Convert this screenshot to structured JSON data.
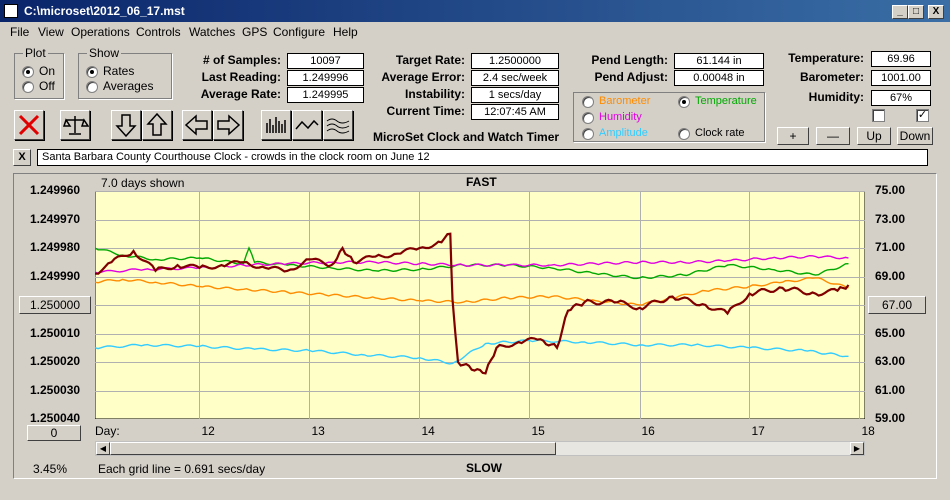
{
  "window": {
    "title": "C:\\microset\\2012_06_17.mst",
    "min": "_",
    "max": "□",
    "close": "X"
  },
  "menu": [
    "File",
    "View",
    "Operations",
    "Controls",
    "Watches",
    "GPS",
    "Configure",
    "Help"
  ],
  "plot_group": {
    "title": "Plot",
    "on": "On",
    "off": "Off",
    "selected": "On"
  },
  "show_group": {
    "title": "Show",
    "rates": "Rates",
    "averages": "Averages",
    "selected": "Rates"
  },
  "stats": {
    "samples_label": "# of Samples:",
    "samples": "10097",
    "last_label": "Last Reading:",
    "last": "1.249996",
    "avg_label": "Average Rate:",
    "avg": "1.249995",
    "target_label": "Target Rate:",
    "target": "1.2500000",
    "error_label": "Average Error:",
    "error": "2.4 sec/week",
    "instab_label": "Instability:",
    "instab": "1 secs/day",
    "time_label": "Current Time:",
    "time": "12:07:45 AM",
    "pend_len_label": "Pend Length:",
    "pend_len": "61.144 in",
    "pend_adj_label": "Pend Adjust:",
    "pend_adj": "0.00048 in",
    "temp_label": "Temperature:",
    "temp": "69.96",
    "baro_label": "Barometer:",
    "baro": "1001.00",
    "hum_label": "Humidity:",
    "hum": "67%"
  },
  "sensor_select": {
    "barometer": "Barometer",
    "temperature": "Temperature",
    "humidity": "Humidity",
    "amplitude": "Amplitude",
    "clock_rate": "Clock rate",
    "selected": "Temperature"
  },
  "app_label": "MicroSet Clock and Watch Timer",
  "adjust_buttons": {
    "plus": "+",
    "minus": "—",
    "up": "Up",
    "down": "Down"
  },
  "checkboxes": {
    "left": false,
    "right": true
  },
  "toolbar": {
    "close_x": "X"
  },
  "description": "Santa Barbara County Courthouse Clock - crowds in the clock room on June 12",
  "colors": {
    "plot_bg": "#ffffc8",
    "rate": "#800000",
    "temperature": "#00a800",
    "humidity": "#e000e0",
    "barometer": "#ff8c00",
    "amplitude": "#33ccff"
  },
  "chart": {
    "days_shown": "7.0 days shown",
    "fast": "FAST",
    "slow": "SLOW",
    "day_label": "Day:",
    "grid_note": "Each grid line = 0.691 secs/day",
    "percent": "3.45%",
    "left_center_btn": "1.250000",
    "right_center_btn": "67.00",
    "bottom_left_btn": "0"
  },
  "chart_data": {
    "type": "line",
    "x_label": "Day:",
    "x_ticks": [
      "12",
      "13",
      "14",
      "15",
      "16",
      "17",
      "18"
    ],
    "y_left_ticks": [
      "1.249960",
      "1.249970",
      "1.249980",
      "1.249990",
      "1.250000",
      "1.250010",
      "1.250020",
      "1.250030",
      "1.250040"
    ],
    "y_right_ticks": [
      "75.00",
      "73.00",
      "71.00",
      "69.00",
      "67.00",
      "65.00",
      "63.00",
      "61.00",
      "59.00"
    ],
    "xlim": [
      11.05,
      18.05
    ],
    "y_left_lim": [
      1.24996,
      1.25004
    ],
    "y_right_lim": [
      59,
      75
    ],
    "series": [
      {
        "name": "Temperature",
        "color": "#00a800",
        "axis": "right",
        "x": [
          11.05,
          11.3,
          11.6,
          12.0,
          12.4,
          12.45,
          12.5,
          12.8,
          13.2,
          13.6,
          14.0,
          14.4,
          14.8,
          15.2,
          15.6,
          16.0,
          16.4,
          16.8,
          17.2,
          17.6,
          17.9
        ],
        "y": [
          71.0,
          70.5,
          70.2,
          70.3,
          69.9,
          71.0,
          70.0,
          69.8,
          69.6,
          69.4,
          69.5,
          69.8,
          69.8,
          69.6,
          69.2,
          68.9,
          69.1,
          69.8,
          69.5,
          69.1,
          69.9
        ]
      },
      {
        "name": "Humidity",
        "color": "#e000e0",
        "axis": "right",
        "x": [
          11.05,
          11.5,
          12.0,
          12.4,
          12.8,
          13.2,
          13.6,
          14.0,
          14.4,
          14.8,
          15.2,
          15.6,
          16.0,
          16.4,
          16.8,
          17.2,
          17.6,
          17.9
        ],
        "y": [
          69.3,
          69.5,
          69.6,
          69.8,
          69.9,
          70.0,
          70.0,
          69.9,
          69.8,
          69.8,
          69.8,
          69.9,
          70.0,
          70.0,
          70.1,
          70.3,
          70.4,
          70.3
        ]
      },
      {
        "name": "Barometer",
        "color": "#ff8c00",
        "axis": "right",
        "x": [
          11.05,
          11.3,
          11.6,
          12.0,
          12.4,
          12.8,
          13.2,
          13.6,
          14.0,
          14.4,
          14.8,
          15.2,
          15.6,
          16.0,
          16.3,
          16.6,
          17.0,
          17.3,
          17.6,
          17.9
        ],
        "y": [
          68.6,
          68.8,
          68.6,
          68.3,
          68.1,
          67.9,
          67.7,
          67.5,
          67.3,
          67.2,
          67.5,
          67.6,
          67.3,
          67.0,
          67.5,
          68.0,
          68.3,
          68.6,
          68.9,
          68.2
        ]
      },
      {
        "name": "Amplitude",
        "color": "#33ccff",
        "axis": "right",
        "x": [
          11.05,
          11.5,
          12.0,
          12.5,
          13.0,
          13.5,
          14.0,
          14.3,
          14.6,
          15.0,
          15.5,
          16.0,
          16.5,
          17.0,
          17.5,
          17.9
        ],
        "y": [
          64.0,
          64.2,
          64.1,
          63.9,
          63.8,
          63.5,
          63.3,
          62.9,
          64.3,
          64.5,
          64.4,
          64.2,
          64.2,
          64.0,
          63.8,
          63.4
        ]
      },
      {
        "name": "Rate",
        "color": "#800000",
        "axis": "left",
        "x": [
          11.05,
          11.2,
          11.4,
          11.6,
          11.8,
          12.0,
          12.2,
          12.4,
          12.6,
          12.8,
          13.0,
          13.2,
          13.3,
          13.4,
          13.6,
          13.8,
          14.0,
          14.2,
          14.28,
          14.3,
          14.35,
          14.5,
          14.6,
          14.7,
          14.9,
          15.1,
          15.25,
          15.35,
          15.5,
          15.8,
          16.0,
          16.3,
          16.6,
          16.8,
          17.0,
          17.3,
          17.6,
          17.8,
          17.9
        ],
        "y": [
          1.249989,
          1.249985,
          1.249981,
          1.249988,
          1.249986,
          1.249987,
          1.249986,
          1.249985,
          1.249987,
          1.249988,
          1.249984,
          1.249986,
          1.24998,
          1.249985,
          1.249983,
          1.249982,
          1.24998,
          1.249978,
          1.249975,
          1.249998,
          1.25002,
          1.250023,
          1.250024,
          1.250015,
          1.250013,
          1.250012,
          1.250015,
          1.250002,
          1.249999,
          1.249999,
          1.250001,
          1.249997,
          1.25,
          1.250003,
          1.249996,
          1.249994,
          1.249996,
          1.249995,
          1.249993
        ]
      }
    ]
  }
}
